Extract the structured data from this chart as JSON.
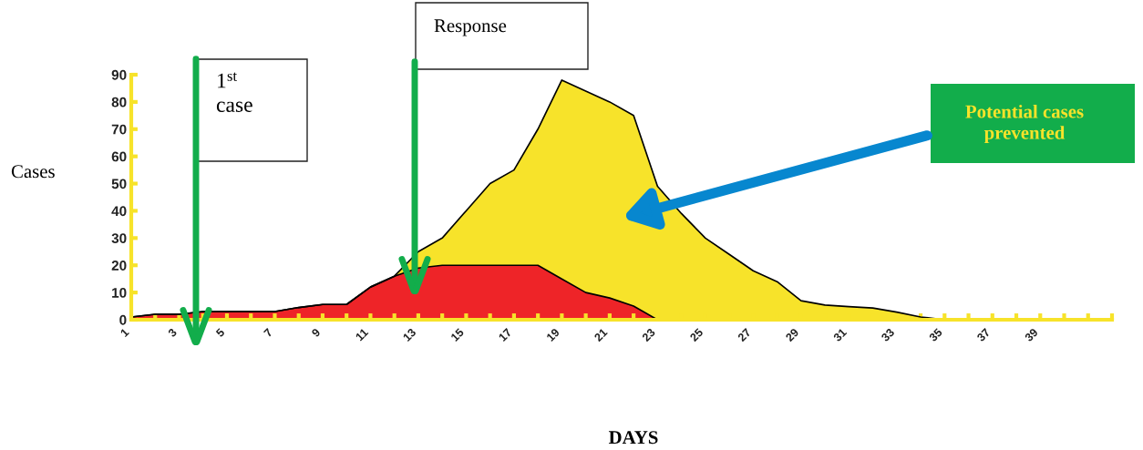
{
  "chart_data": {
    "type": "area",
    "ylabel": "Cases",
    "xlabel": "DAYS",
    "categories": [
      "1",
      null,
      "3",
      null,
      "5",
      null,
      "7",
      null,
      "9",
      null,
      "11",
      null,
      "13",
      null,
      "15",
      null,
      "17",
      null,
      "19",
      null,
      "21",
      null,
      "23",
      null,
      "25",
      null,
      "27",
      null,
      "29",
      null,
      "31",
      null,
      "33",
      null,
      "35",
      null,
      "37",
      null,
      "39",
      null,
      null,
      null
    ],
    "series": [
      {
        "color": "#f7e32a",
        "values": [
          1,
          2,
          2,
          3,
          3,
          3,
          3,
          4.5,
          5.6,
          5.6,
          12,
          16,
          25,
          30,
          40,
          50,
          55,
          70,
          88,
          84,
          80,
          75,
          49,
          39,
          30,
          24,
          18,
          14,
          7,
          5.4,
          4.8,
          4.3,
          2.8,
          1,
          0,
          0,
          0,
          0,
          0,
          0,
          0,
          0
        ]
      },
      {
        "color": "#ee2428",
        "values": [
          1,
          2,
          2,
          3,
          3,
          3,
          3,
          4.5,
          5.6,
          5.6,
          12,
          16,
          19,
          20,
          20,
          20,
          20,
          20,
          15,
          10,
          8,
          5,
          0,
          null,
          null,
          null,
          null,
          null,
          null,
          null,
          null,
          null,
          null,
          null,
          null,
          null,
          null,
          null,
          null,
          null,
          null,
          null
        ]
      }
    ],
    "ylim": [
      0,
      90
    ],
    "yticks": [
      0,
      10,
      20,
      30,
      40,
      50,
      60,
      70,
      80,
      90
    ],
    "grid": false,
    "legend": false,
    "annotations": [
      "1$^{st}$\ncase",
      "Response",
      "Potential cases\nprevented"
    ]
  }
}
